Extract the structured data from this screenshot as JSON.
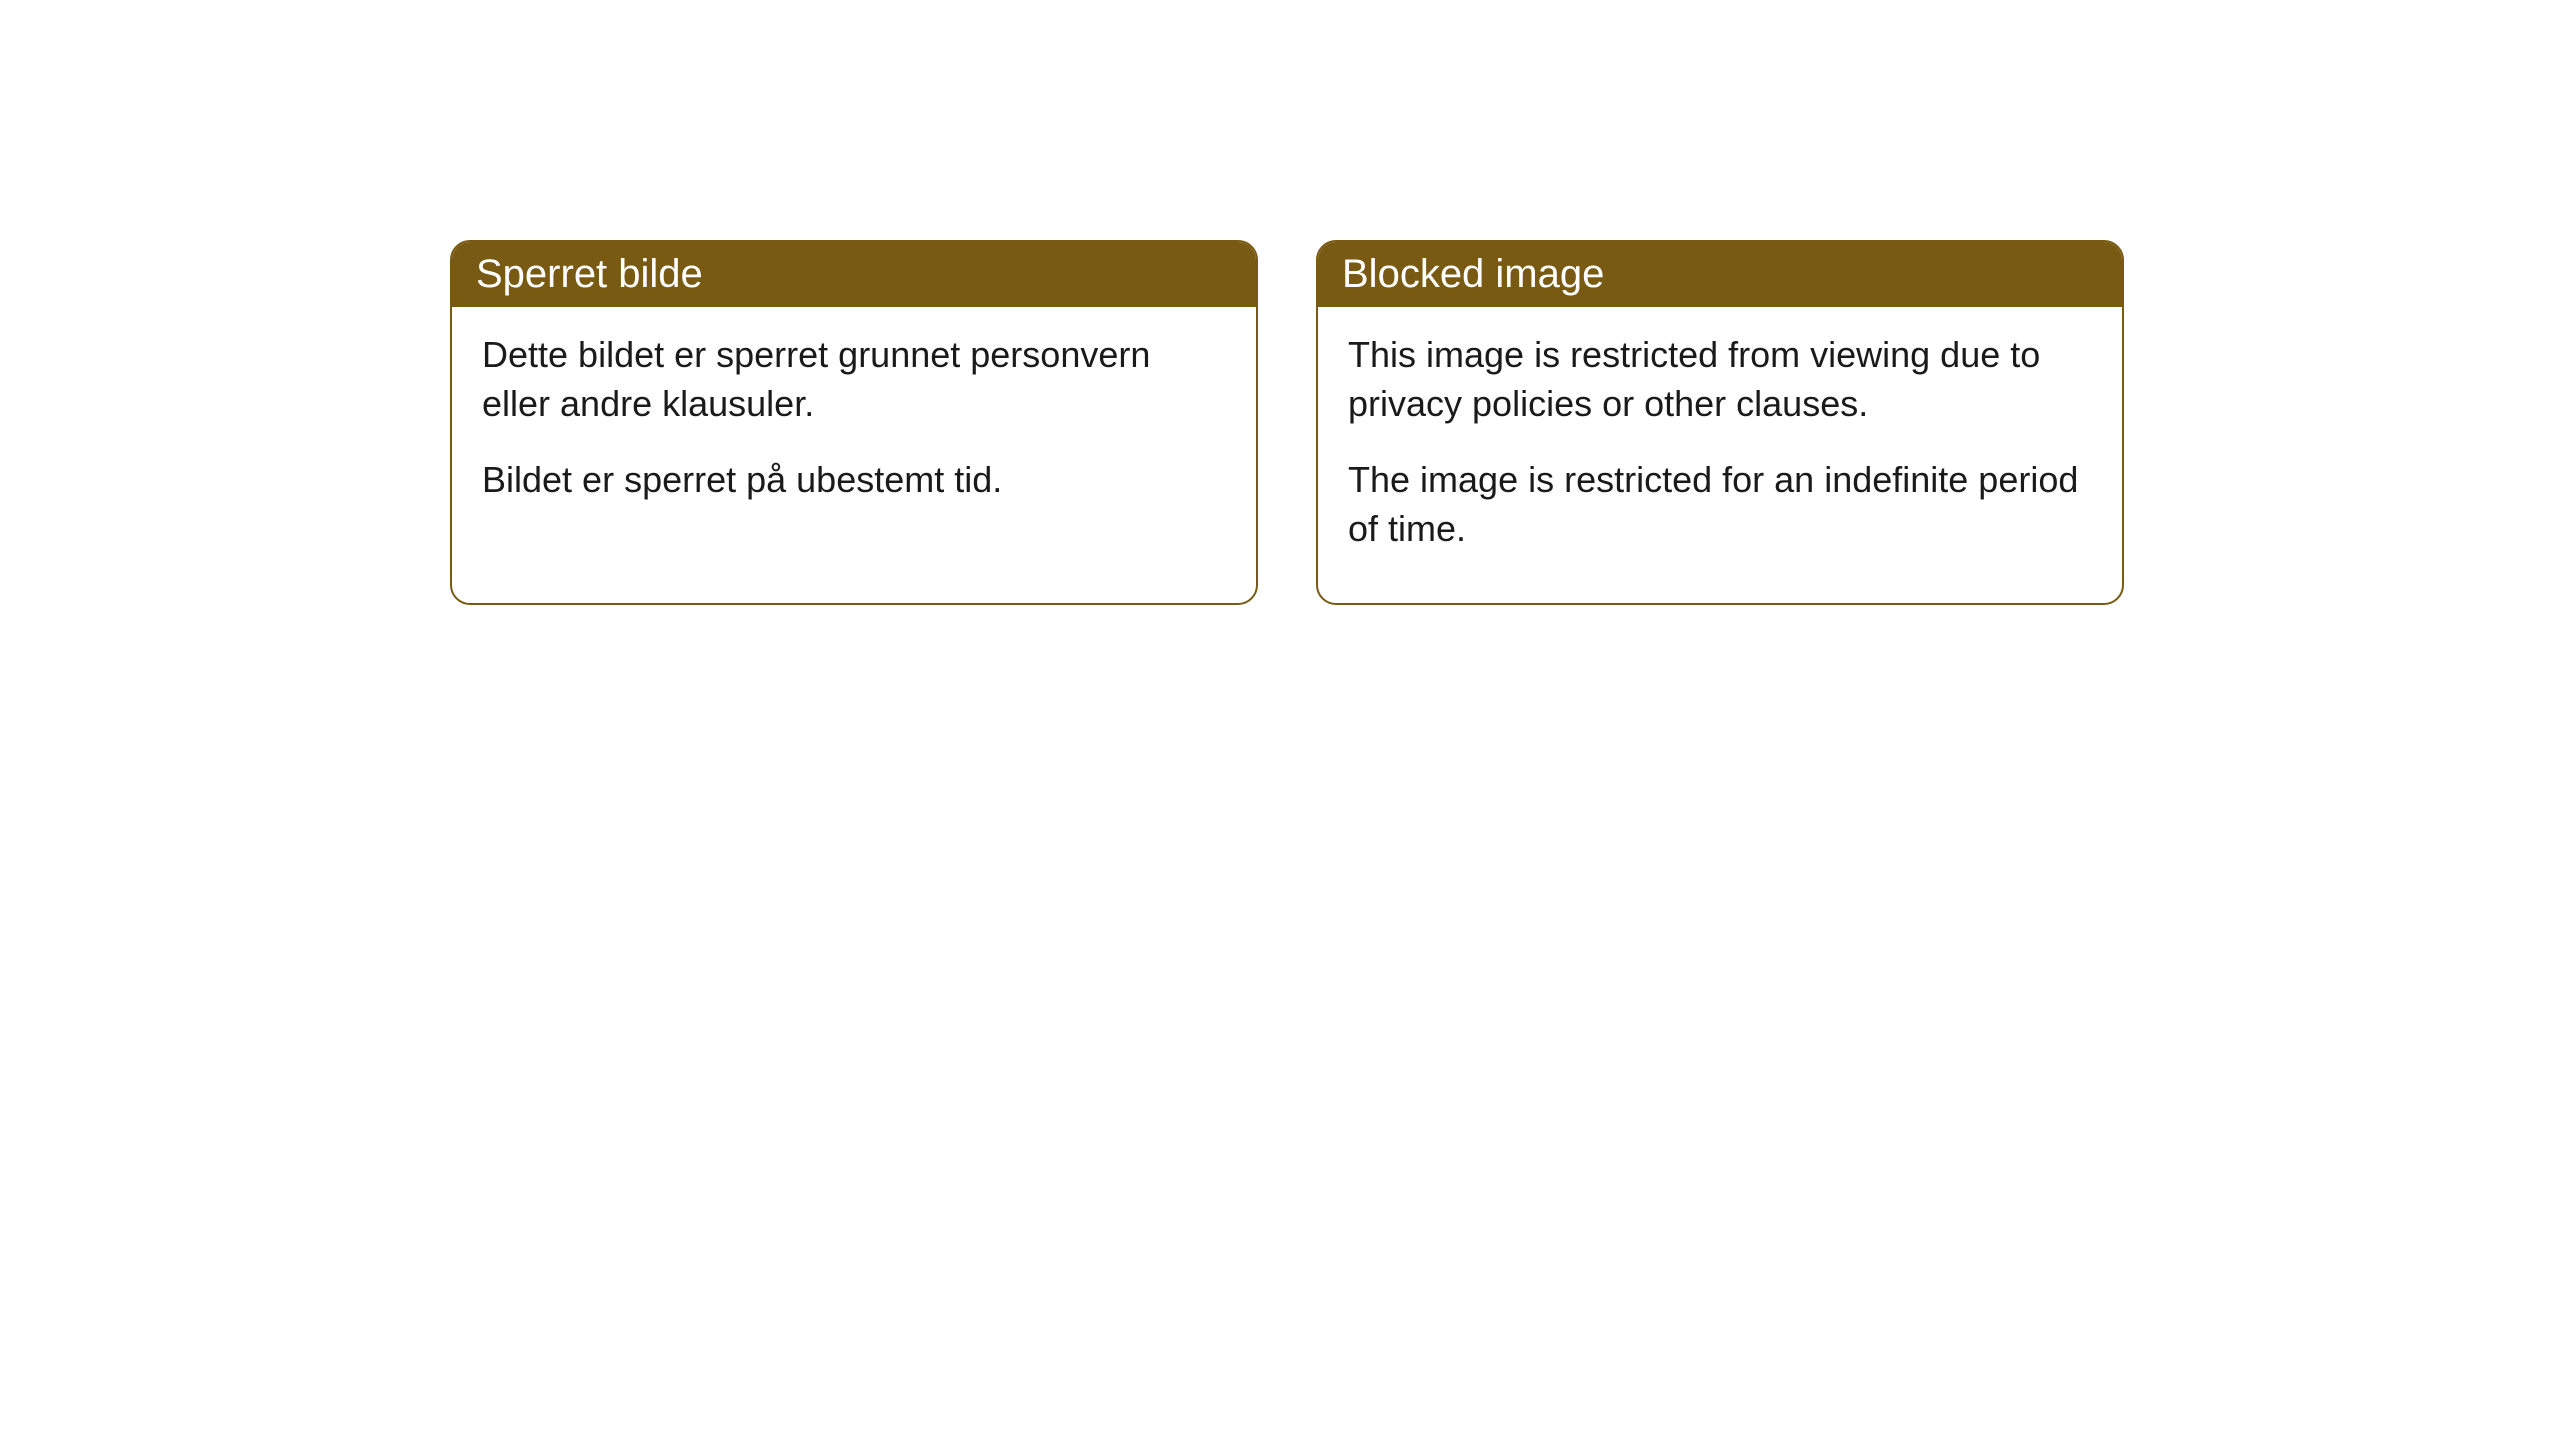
{
  "cards": [
    {
      "title": "Sperret bilde",
      "para1": "Dette bildet er sperret grunnet personvern eller andre klausuler.",
      "para2": "Bildet er sperret på ubestemt tid."
    },
    {
      "title": "Blocked image",
      "para1": "This image is restricted from viewing due to privacy policies or other clauses.",
      "para2": "The image is restricted for an indefinite period of time."
    }
  ],
  "style": {
    "header_bg": "#795a13",
    "header_text": "#ffffff",
    "border_color": "#795a13",
    "body_bg": "#ffffff",
    "body_text": "#1a1a1a",
    "title_fontsize": 40,
    "body_fontsize": 36,
    "border_radius": 20
  }
}
